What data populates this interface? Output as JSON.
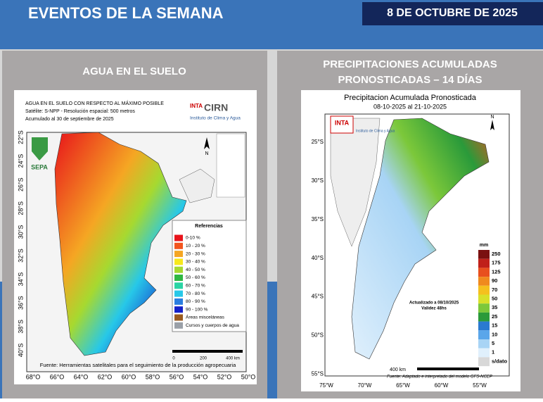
{
  "header": {
    "title": "EVENTOS DE LA SEMANA",
    "date": "8 DE OCTUBRE DE 2025"
  },
  "panels": [
    {
      "title": [
        "AGUA EN EL SUELO"
      ],
      "map": {
        "heading": [
          "AGUA EN EL SUELO CON RESPECTO AL MÁXIMO POSIBLE",
          "Satélite: S-NPP - Resolución espacial: 500 metros",
          "Acumulado al 30 de septiembre de 2025"
        ],
        "logo_inta": "INTA",
        "logo_org": "CIRN",
        "logo_sub": "Instituto de Clima y Agua",
        "sepa": "SEPA",
        "north": "N",
        "legend_title": "Referencias",
        "legend": [
          {
            "label": "0-10 %",
            "color": "#e8141b"
          },
          {
            "label": "10 - 20 %",
            "color": "#f2551e"
          },
          {
            "label": "20 - 30 %",
            "color": "#f5a623"
          },
          {
            "label": "30 - 40 %",
            "color": "#f7e81c"
          },
          {
            "label": "40 - 50 %",
            "color": "#a6d930"
          },
          {
            "label": "50 - 60 %",
            "color": "#2fb842"
          },
          {
            "label": "60 - 70 %",
            "color": "#2ad4a4"
          },
          {
            "label": "70 - 80 %",
            "color": "#27c8e8"
          },
          {
            "label": "80 - 90 %",
            "color": "#2a7ee0"
          },
          {
            "label": "90 - 100 %",
            "color": "#1420c8"
          },
          {
            "label": "Áreas misceláneas",
            "color": "#9a5a1e"
          },
          {
            "label": "Cursos y cuerpos de agua",
            "color": "#9aa0a8"
          }
        ],
        "scale": [
          "0",
          "200",
          "400 km"
        ],
        "footer": "Fuente: Herramientas satelitales para el seguimiento de la producción agropecuaria",
        "lat": [
          "22°S",
          "24°S",
          "26°S",
          "28°S",
          "30°S",
          "32°S",
          "34°S",
          "36°S",
          "38°S",
          "40°S"
        ],
        "lon": [
          "68°O",
          "66°O",
          "64°O",
          "62°O",
          "60°O",
          "58°O",
          "56°O",
          "54°O",
          "52°O",
          "50°O"
        ]
      }
    },
    {
      "title": [
        "PRECIPITACIONES ACUMULADAS",
        "PRONOSTICADAS – 14 DÍAS"
      ],
      "map": {
        "heading": [
          "Precipitacion Acumulada Pronosticada",
          "08-10-2025 al 21-10-2025"
        ],
        "logo_inta": "INTA",
        "logo_sub": "Instituto de Clima y Agua",
        "north": "N",
        "unit": "mm",
        "legend": [
          {
            "label": "250",
            "color": "#7a1010"
          },
          {
            "label": "175",
            "color": "#c0201a"
          },
          {
            "label": "125",
            "color": "#e8501e"
          },
          {
            "label": "90",
            "color": "#f08a1e"
          },
          {
            "label": "70",
            "color": "#f5c01e"
          },
          {
            "label": "50",
            "color": "#d8e02a"
          },
          {
            "label": "35",
            "color": "#7cc83a"
          },
          {
            "label": "25",
            "color": "#2a9a3a"
          },
          {
            "label": "15",
            "color": "#2a7ad0"
          },
          {
            "label": "10",
            "color": "#5aa6ea"
          },
          {
            "label": "5",
            "color": "#a8d4f5"
          },
          {
            "label": "1",
            "color": "#e0f0fc"
          },
          {
            "label": "s/dato",
            "color": "#d8d8d8"
          }
        ],
        "note": [
          "Actualizado a 08/10/2025",
          "Validez 48hs"
        ],
        "scale": "400 km",
        "footer": "Fuente: Adaptado e interpretado del modelo GFS-NCEP",
        "lat": [
          "25°S",
          "30°S",
          "35°S",
          "40°S",
          "45°S",
          "50°S",
          "55°S"
        ],
        "lon": [
          "75°W",
          "70°W",
          "65°W",
          "60°W",
          "55°W"
        ]
      }
    }
  ]
}
